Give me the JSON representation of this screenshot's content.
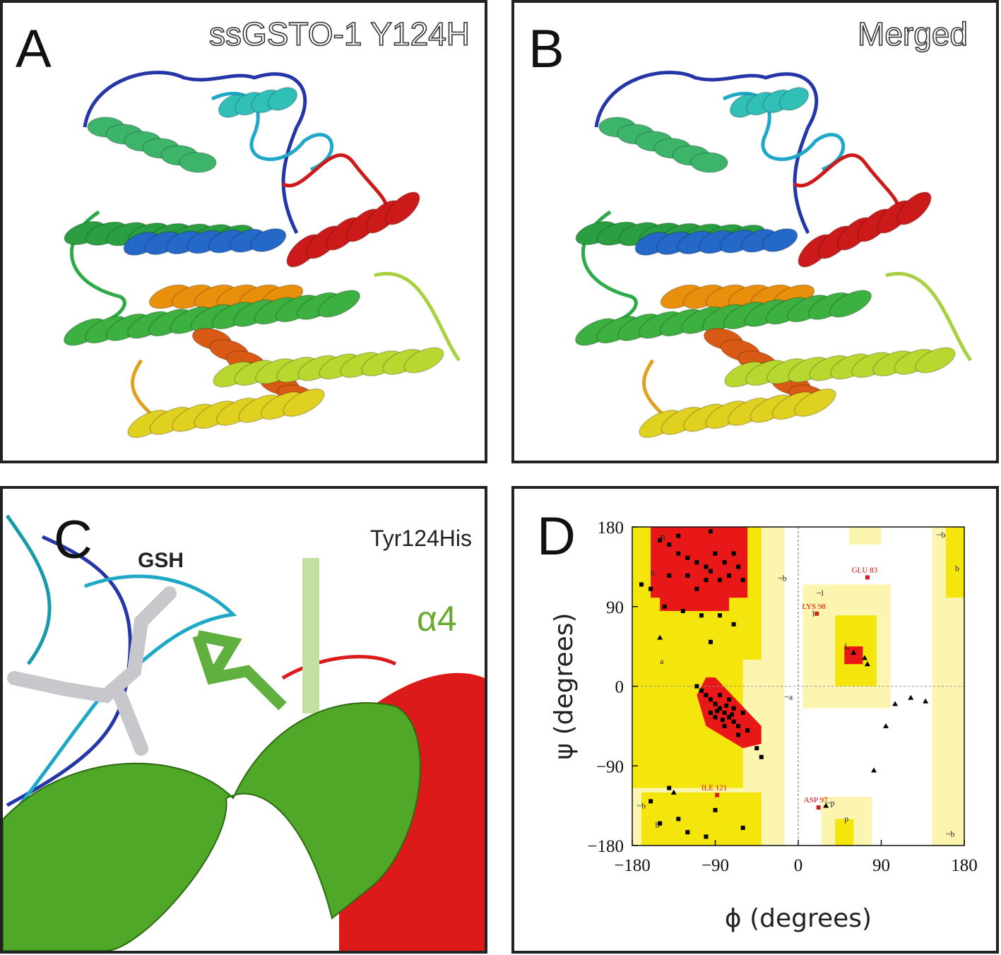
{
  "panels": [
    {
      "letter": "A",
      "caption": "ssGSTO-1 Y124H"
    },
    {
      "letter": "B",
      "caption": "Merged"
    },
    {
      "letter": "C",
      "caption": "Tyr124His",
      "ligand": "GSH",
      "helix": "α4"
    }
  ],
  "chart_data": {
    "type": "scatter",
    "letter": "D",
    "x_label": "ϕ (degrees)",
    "y_label": "ψ (degrees)",
    "xlim": [
      -180,
      180
    ],
    "ylim": [
      -180,
      180
    ],
    "xticks": [
      {
        "value": -180,
        "label": "−180"
      },
      {
        "value": -90,
        "label": "−90"
      },
      0,
      90,
      180
    ],
    "yticks": [
      {
        "value": -180,
        "label": "−180"
      },
      {
        "value": -90,
        "label": "−90"
      },
      0,
      90,
      180
    ],
    "region_labels": [
      "B",
      "b",
      "a",
      "~b",
      "~a",
      "~l",
      "l",
      "L",
      "~p",
      "p",
      "~b",
      "b",
      "~b",
      "b",
      "~b"
    ],
    "series": [
      {
        "marker": "square",
        "color": "#000000",
        "x": [
          -150,
          -140,
          -130,
          -120,
          -110,
          -100,
          -95,
          -90,
          -80,
          -75,
          -85,
          -100,
          -110,
          -120,
          -70,
          -65,
          -60,
          -130,
          -95,
          -140,
          -160,
          -170,
          -145,
          -125,
          -105,
          -85,
          -70,
          -90,
          -85,
          -80,
          -75,
          -70,
          -65,
          -95,
          -100,
          -105,
          -90,
          -80,
          -70,
          -60,
          -75,
          -85,
          -95,
          -110,
          -65,
          -55,
          -78,
          -88,
          -82,
          -72,
          -130,
          -100,
          -120,
          -150,
          -60,
          -90,
          -45,
          -40,
          -95,
          -160,
          -140
        ],
        "values": [
          165,
          160,
          150,
          145,
          140,
          135,
          130,
          150,
          140,
          125,
          120,
          120,
          110,
          125,
          150,
          135,
          120,
          170,
          175,
          125,
          110,
          115,
          90,
          85,
          80,
          80,
          70,
          -20,
          -25,
          -30,
          -35,
          -40,
          -45,
          -15,
          -10,
          -5,
          -35,
          -45,
          -25,
          -30,
          -15,
          -10,
          -30,
          0,
          -55,
          -50,
          -22,
          -28,
          -38,
          -32,
          -150,
          -170,
          -165,
          -155,
          -160,
          -140,
          -70,
          -80,
          50,
          -130,
          -115
        ]
      },
      {
        "marker": "triangle",
        "color": "#000000",
        "x": [
          -150,
          60,
          72,
          75,
          105,
          122,
          138,
          95,
          82,
          30,
          -135
        ],
        "values": [
          55,
          38,
          32,
          25,
          -20,
          -13,
          -17,
          -45,
          -95,
          -135,
          -120
        ]
      },
      {
        "marker": "square",
        "color": "#cc2222",
        "x": [
          75,
          20,
          -88,
          22
        ],
        "values": [
          123,
          82,
          -123,
          -137
        ],
        "labels": [
          "GLU 83",
          "LYS 98",
          "ILE 121",
          "ASP 97"
        ]
      }
    ]
  }
}
